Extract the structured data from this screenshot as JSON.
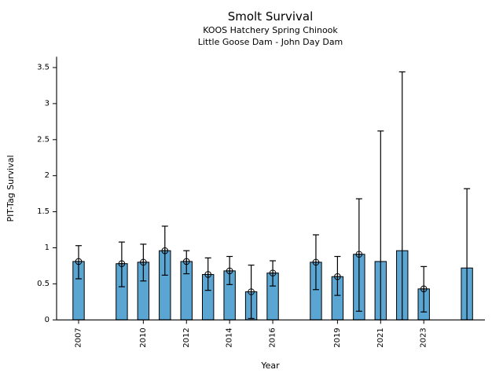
{
  "figure": {
    "background": "#FFFFFF"
  },
  "chart_data": {
    "type": "bar",
    "title": "Smolt Survival",
    "subtitle": [
      "KOOS Hatchery Spring Chinook",
      "Little Goose Dam - John Day Dam"
    ],
    "xlabel": "Year",
    "ylabel": "PIT-Tag Survival",
    "ylim": [
      0,
      3.65
    ],
    "xlim": [
      2006,
      2025.8
    ],
    "grid": false,
    "legend": "none",
    "spines": [
      "left",
      "bottom"
    ],
    "yticks": {
      "values": [
        0,
        0.5,
        1,
        1.5,
        2,
        2.5,
        3,
        3.5
      ],
      "labels": [
        "0",
        "0.5",
        "1",
        "1.5",
        "2",
        "2.5",
        "3",
        "3.5"
      ]
    },
    "xticks": {
      "values": [
        2007,
        2010,
        2012,
        2014,
        2016,
        2019,
        2021,
        2023
      ],
      "labels": [
        "2007",
        "2010",
        "2012",
        "2014",
        "2016",
        "2019",
        "2021",
        "2023"
      ],
      "rotation": 90
    },
    "series": [
      {
        "name": "PIT-Tag Survival",
        "marker_style": "circle-plus",
        "errorbars": "asymmetric-CI",
        "points": [
          {
            "year": 2007,
            "value": 0.81,
            "lo": 0.57,
            "hi": 1.03,
            "marker": true
          },
          {
            "year": 2009,
            "value": 0.78,
            "lo": 0.46,
            "hi": 1.08,
            "marker": true
          },
          {
            "year": 2010,
            "value": 0.8,
            "lo": 0.54,
            "hi": 1.05,
            "marker": true
          },
          {
            "year": 2011,
            "value": 0.96,
            "lo": 0.62,
            "hi": 1.3,
            "marker": true
          },
          {
            "year": 2012,
            "value": 0.81,
            "lo": 0.64,
            "hi": 0.96,
            "marker": true
          },
          {
            "year": 2013,
            "value": 0.63,
            "lo": 0.41,
            "hi": 0.86,
            "marker": true
          },
          {
            "year": 2014,
            "value": 0.68,
            "lo": 0.49,
            "hi": 0.88,
            "marker": true
          },
          {
            "year": 2015,
            "value": 0.39,
            "lo": 0.02,
            "hi": 0.76,
            "marker": true
          },
          {
            "year": 2016,
            "value": 0.65,
            "lo": 0.47,
            "hi": 0.82,
            "marker": true
          },
          {
            "year": 2018,
            "value": 0.8,
            "lo": 0.42,
            "hi": 1.18,
            "marker": true
          },
          {
            "year": 2019,
            "value": 0.6,
            "lo": 0.34,
            "hi": 0.88,
            "marker": true
          },
          {
            "year": 2020,
            "value": 0.91,
            "lo": 0.12,
            "hi": 1.68,
            "marker": true
          },
          {
            "year": 2021,
            "value": 0.81,
            "lo": 0.0,
            "hi": 2.62,
            "marker": false
          },
          {
            "year": 2022,
            "value": 0.96,
            "lo": 0.0,
            "hi": 3.44,
            "marker": false
          },
          {
            "year": 2023,
            "value": 0.43,
            "lo": 0.11,
            "hi": 0.74,
            "marker": true
          },
          {
            "year": 2025,
            "value": 0.72,
            "lo": 0.0,
            "hi": 1.82,
            "marker": false
          }
        ]
      }
    ],
    "colors": {
      "bar_fill": "#5AA5D2",
      "bar_edge": "#000000",
      "errorbar": "#000000",
      "axis": "#000000",
      "text": "#000000",
      "background": "#FFFFFF"
    }
  }
}
